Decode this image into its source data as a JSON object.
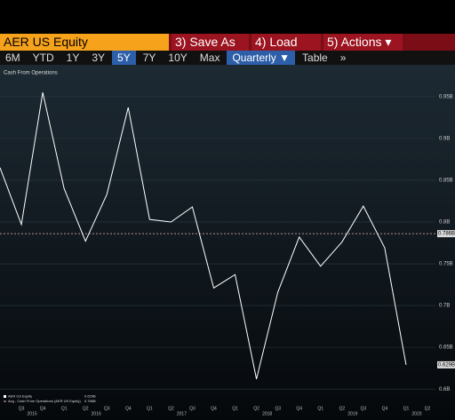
{
  "toolbar": {
    "security": "AER US Equity",
    "buttons": [
      "3) Save As",
      "4) Load",
      "5) Actions ▾"
    ],
    "ranges": [
      "6M",
      "YTD",
      "1Y",
      "3Y",
      "5Y",
      "7Y",
      "10Y",
      "Max"
    ],
    "selected_range": "5Y",
    "period": "Quarterly ▼",
    "view": "Table",
    "more": "»"
  },
  "chart_data": {
    "type": "line",
    "title": "Cash From Operations",
    "categories": [
      null,
      "Q3",
      "Q4",
      "Q1",
      "Q2",
      "Q3",
      "Q4",
      "Q1",
      "Q2",
      "Q3",
      "Q4",
      "Q1",
      "Q2",
      "Q3",
      "Q4",
      "Q1",
      "Q2",
      "Q3",
      "Q4",
      "Q1",
      "Q2"
    ],
    "years": [
      "2015",
      "2016",
      "2017",
      "2018",
      "2019",
      "2020"
    ],
    "series": [
      {
        "name": "AER US Equity",
        "color": "#ffffff",
        "values": [
          0.865,
          0.797,
          0.955,
          0.84,
          0.777,
          0.833,
          0.937,
          0.803,
          0.8,
          0.818,
          0.721,
          0.737,
          0.612,
          0.716,
          0.782,
          0.747,
          0.776,
          0.819,
          0.769,
          0.629,
          null
        ],
        "last_label": "0.629B"
      }
    ],
    "average": {
      "name": "Avg - Cash From Operations (AER US Equity)",
      "value": 0.786,
      "label": "0.786B",
      "color": "#e8b4b4"
    },
    "ylim": [
      0.58,
      0.97
    ],
    "yticks": [
      {
        "value": 0.6,
        "label": "0.6B"
      },
      {
        "value": 0.65,
        "label": "0.65B"
      },
      {
        "value": 0.7,
        "label": "0.7B"
      },
      {
        "value": 0.75,
        "label": "0.75B"
      },
      {
        "value": 0.8,
        "label": "0.8B"
      },
      {
        "value": 0.85,
        "label": "0.85B"
      },
      {
        "value": 0.9,
        "label": "0.9B"
      },
      {
        "value": 0.95,
        "label": "0.95B"
      }
    ],
    "grid": true
  }
}
